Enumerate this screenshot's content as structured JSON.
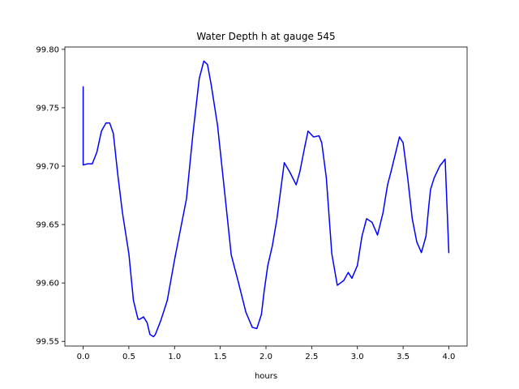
{
  "chart_data": {
    "type": "line",
    "title": "Water Depth h at gauge 545",
    "xlabel": "hours",
    "ylabel": "",
    "xlim": [
      -0.2,
      4.2
    ],
    "ylim": [
      99.546,
      99.802
    ],
    "xticks": [
      0.0,
      0.5,
      1.0,
      1.5,
      2.0,
      2.5,
      3.0,
      3.5,
      4.0
    ],
    "xtick_labels": [
      "0.0",
      "0.5",
      "1.0",
      "1.5",
      "2.0",
      "2.5",
      "3.0",
      "3.5",
      "4.0"
    ],
    "yticks": [
      99.55,
      99.6,
      99.65,
      99.7,
      99.75,
      99.8
    ],
    "ytick_labels": [
      "99.55",
      "99.60",
      "99.65",
      "99.70",
      "99.75",
      "99.80"
    ],
    "grid": false,
    "series": [
      {
        "color": "#0000ff",
        "x": [
          0.0,
          0.0,
          0.05,
          0.1,
          0.15,
          0.2,
          0.25,
          0.29,
          0.33,
          0.38,
          0.43,
          0.5,
          0.55,
          0.6,
          0.62,
          0.66,
          0.7,
          0.73,
          0.77,
          0.79,
          0.85,
          0.92,
          1.0,
          1.07,
          1.13,
          1.2,
          1.27,
          1.32,
          1.36,
          1.4,
          1.47,
          1.55,
          1.62,
          1.7,
          1.78,
          1.85,
          1.9,
          1.95,
          1.98,
          2.02,
          2.07,
          2.12,
          2.2,
          2.26,
          2.33,
          2.37,
          2.42,
          2.46,
          2.52,
          2.58,
          2.61,
          2.66,
          2.72,
          2.78,
          2.85,
          2.9,
          2.94,
          3.0,
          3.05,
          3.1,
          3.16,
          3.22,
          3.28,
          3.33,
          3.37,
          3.42,
          3.46,
          3.5,
          3.55,
          3.6,
          3.65,
          3.7,
          3.75,
          3.78,
          3.8,
          3.84,
          3.9,
          3.96,
          4.0
        ],
        "y": [
          99.768,
          99.701,
          99.702,
          99.702,
          99.712,
          99.73,
          99.737,
          99.737,
          99.728,
          99.692,
          99.66,
          99.625,
          99.585,
          99.569,
          99.569,
          99.571,
          99.566,
          99.556,
          99.554,
          99.556,
          99.568,
          99.585,
          99.62,
          99.648,
          99.672,
          99.727,
          99.775,
          99.79,
          99.787,
          99.77,
          99.735,
          99.676,
          99.624,
          99.6,
          99.575,
          99.562,
          99.561,
          99.573,
          99.593,
          99.615,
          99.632,
          99.655,
          99.703,
          99.695,
          99.684,
          99.695,
          99.715,
          99.73,
          99.725,
          99.726,
          99.72,
          99.69,
          99.625,
          99.598,
          99.602,
          99.609,
          99.604,
          99.615,
          99.64,
          99.655,
          99.652,
          99.641,
          99.66,
          99.684,
          99.696,
          99.712,
          99.725,
          99.72,
          99.69,
          99.655,
          99.635,
          99.626,
          99.64,
          99.665,
          99.68,
          99.69,
          99.7,
          99.706,
          99.626
        ]
      }
    ]
  }
}
